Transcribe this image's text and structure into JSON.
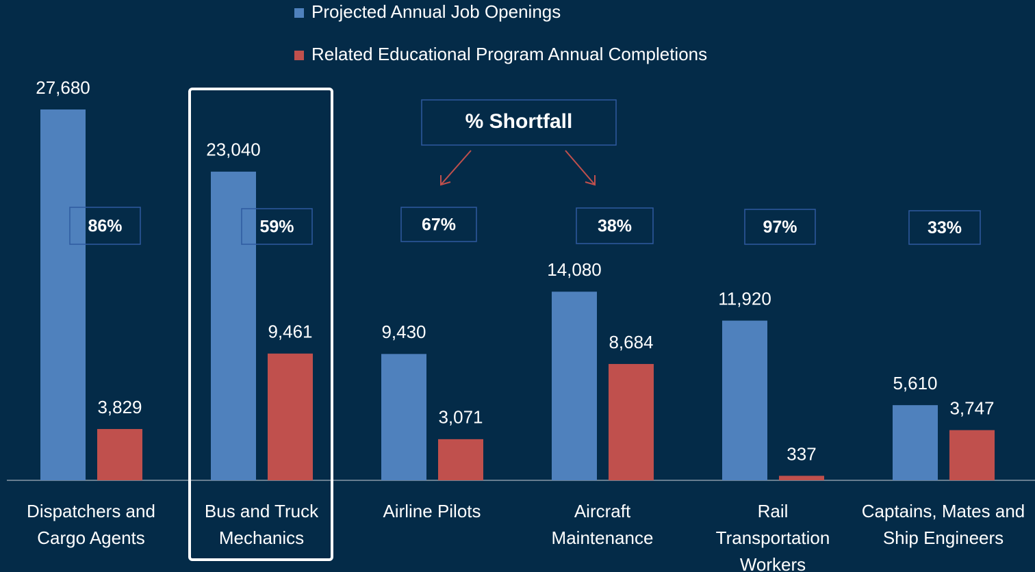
{
  "chart_data": {
    "type": "bar",
    "categories": [
      "Dispatchers and Cargo Agents",
      "Bus and Truck Mechanics",
      "Airline Pilots",
      "Aircraft Maintenance",
      "Rail Transportation Workers",
      "Captains, Mates and Ship Engineers"
    ],
    "series": [
      {
        "name": "Projected Annual Job Openings",
        "color": "#4f81bd",
        "values": [
          27680,
          23040,
          9430,
          14080,
          11920,
          5610
        ],
        "value_labels": [
          "27,680",
          "23,040",
          "9,430",
          "14,080",
          "11,920",
          "5,610"
        ]
      },
      {
        "name": "Related Educational Program Annual Completions",
        "color": "#c0504d",
        "values": [
          3829,
          9461,
          3071,
          8684,
          337,
          3747
        ],
        "value_labels": [
          "3,829",
          "9,461",
          "3,071",
          "8,684",
          "337",
          "3,747"
        ]
      }
    ],
    "annotations": {
      "callout": "% Shortfall",
      "shortfall": [
        "86%",
        "59%",
        "67%",
        "38%",
        "97%",
        "33%"
      ]
    }
  }
}
